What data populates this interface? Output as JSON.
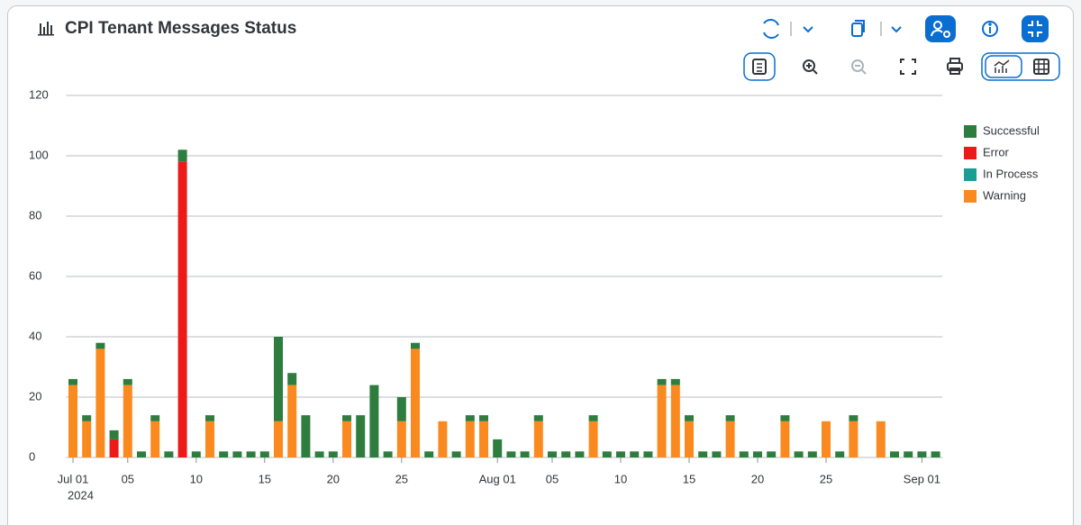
{
  "chart_data": {
    "type": "stacked_bar",
    "title": "CPI Tenant Messages Status",
    "categories": [
      "Jul 01",
      null,
      null,
      null,
      "05",
      null,
      null,
      null,
      null,
      "10",
      null,
      null,
      null,
      null,
      "15",
      null,
      null,
      null,
      null,
      "20",
      null,
      null,
      null,
      null,
      "25",
      null,
      null,
      null,
      null,
      null,
      null,
      "Aug 01",
      null,
      null,
      null,
      "05",
      null,
      null,
      null,
      null,
      "10",
      null,
      null,
      null,
      null,
      "15",
      null,
      null,
      null,
      null,
      "20",
      null,
      null,
      null,
      null,
      "25",
      null,
      null,
      null,
      null,
      null,
      null,
      "Sep 01",
      null
    ],
    "x_year_label": "2024",
    "series": [
      {
        "name": "Successful",
        "color": "#2e7d3f",
        "values": [
          2,
          2,
          2,
          3,
          2,
          2,
          2,
          2,
          4,
          2,
          2,
          2,
          2,
          2,
          2,
          28,
          4,
          14,
          2,
          2,
          2,
          14,
          24,
          2,
          8,
          2,
          2,
          0,
          2,
          2,
          2,
          6,
          2,
          2,
          2,
          2,
          2,
          2,
          2,
          2,
          2,
          2,
          2,
          2,
          2,
          2,
          2,
          2,
          2,
          2,
          2,
          2,
          2,
          2,
          2,
          0,
          2,
          2,
          0,
          0,
          2,
          2,
          2,
          2
        ]
      },
      {
        "name": "Error",
        "color": "#ee1a1a",
        "values": [
          0,
          0,
          0,
          6,
          0,
          0,
          0,
          0,
          98,
          0,
          0,
          0,
          0,
          0,
          0,
          0,
          0,
          0,
          0,
          0,
          0,
          0,
          0,
          0,
          0,
          0,
          0,
          0,
          0,
          0,
          0,
          0,
          0,
          0,
          0,
          0,
          0,
          0,
          0,
          0,
          0,
          0,
          0,
          0,
          0,
          0,
          0,
          0,
          0,
          0,
          0,
          0,
          0,
          0,
          0,
          0,
          0,
          0,
          0,
          0,
          0,
          0,
          0,
          0
        ]
      },
      {
        "name": "In Process",
        "color": "#1a9e94",
        "values": [
          0,
          0,
          0,
          0,
          0,
          0,
          0,
          0,
          0,
          0,
          0,
          0,
          0,
          0,
          0,
          0,
          0,
          0,
          0,
          0,
          0,
          0,
          0,
          0,
          0,
          0,
          0,
          0,
          0,
          0,
          0,
          0,
          0,
          0,
          0,
          0,
          0,
          0,
          0,
          0,
          0,
          0,
          0,
          0,
          0,
          0,
          0,
          0,
          0,
          0,
          0,
          0,
          0,
          0,
          0,
          0,
          0,
          0,
          0,
          0,
          0,
          0,
          0,
          0
        ]
      },
      {
        "name": "Warning",
        "color": "#fa8a20",
        "values": [
          24,
          12,
          36,
          0,
          24,
          0,
          12,
          0,
          0,
          0,
          12,
          0,
          0,
          0,
          0,
          12,
          24,
          0,
          0,
          0,
          12,
          0,
          0,
          0,
          12,
          36,
          0,
          12,
          0,
          12,
          12,
          0,
          0,
          0,
          12,
          0,
          0,
          0,
          12,
          0,
          0,
          0,
          0,
          24,
          24,
          12,
          0,
          0,
          12,
          0,
          0,
          0,
          12,
          0,
          0,
          12,
          0,
          12,
          0,
          12,
          0,
          0,
          0,
          0
        ]
      }
    ],
    "ylim": [
      0,
      120
    ],
    "yticks": [
      0,
      20,
      40,
      60,
      80,
      100,
      120
    ],
    "grid": true,
    "legend": "right"
  }
}
